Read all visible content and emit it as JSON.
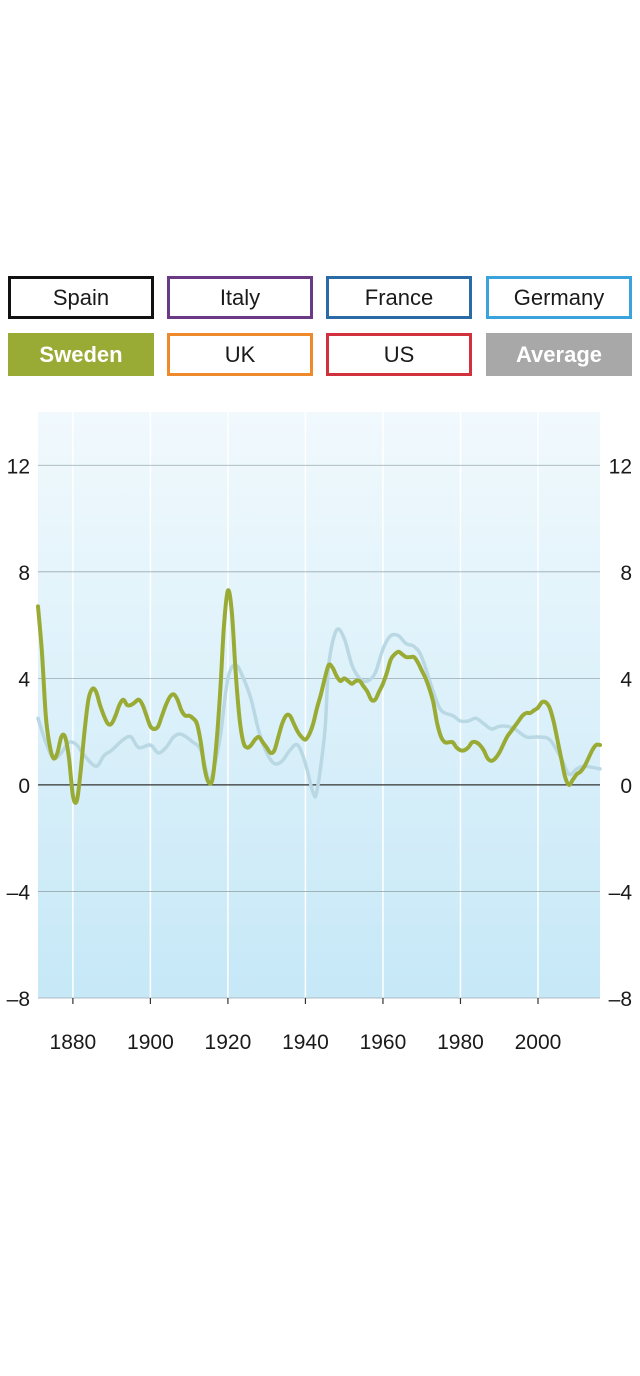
{
  "legend_buttons": [
    {
      "label": "Spain",
      "color": "#111111",
      "active": false
    },
    {
      "label": "Italy",
      "color": "#6b3a86",
      "active": false
    },
    {
      "label": "France",
      "color": "#2a6aa5",
      "active": false
    },
    {
      "label": "Germany",
      "color": "#3aa3db",
      "active": false
    },
    {
      "label": "Sweden",
      "color": "#9aab35",
      "active": true
    },
    {
      "label": "UK",
      "color": "#ee8a2b",
      "active": false
    },
    {
      "label": "US",
      "color": "#d0313c",
      "active": false
    },
    {
      "label": "Average",
      "color": "#a8a8a8",
      "active": true
    }
  ],
  "chart_data": {
    "type": "line",
    "xlim": [
      1871,
      2016
    ],
    "ylim": [
      -8,
      14
    ],
    "x_ticks": [
      "1880",
      "1900",
      "1920",
      "1940",
      "1960",
      "1980",
      "2000"
    ],
    "y_ticks": [
      "12",
      "8",
      "4",
      "0",
      "–4",
      "–8"
    ],
    "grid": true,
    "series": [
      {
        "name": "Average",
        "color": "#b9d8e3",
        "points": [
          [
            1871,
            2.5
          ],
          [
            1873,
            1.6
          ],
          [
            1875,
            1.0
          ],
          [
            1877,
            1.2
          ],
          [
            1879,
            1.6
          ],
          [
            1881,
            1.5
          ],
          [
            1883,
            1.1
          ],
          [
            1886,
            0.7
          ],
          [
            1888,
            1.1
          ],
          [
            1890,
            1.3
          ],
          [
            1893,
            1.7
          ],
          [
            1895,
            1.8
          ],
          [
            1897,
            1.4
          ],
          [
            1900,
            1.5
          ],
          [
            1902,
            1.2
          ],
          [
            1904,
            1.4
          ],
          [
            1906,
            1.8
          ],
          [
            1908,
            1.9
          ],
          [
            1911,
            1.6
          ],
          [
            1913,
            1.3
          ],
          [
            1915,
            0.2
          ],
          [
            1916,
            0.4
          ],
          [
            1918,
            1.8
          ],
          [
            1920,
            4.0
          ],
          [
            1922,
            4.5
          ],
          [
            1924,
            4.0
          ],
          [
            1926,
            3.2
          ],
          [
            1928,
            2.0
          ],
          [
            1930,
            1.2
          ],
          [
            1932,
            0.8
          ],
          [
            1934,
            0.9
          ],
          [
            1936,
            1.3
          ],
          [
            1938,
            1.5
          ],
          [
            1940,
            0.8
          ],
          [
            1942,
            -0.3
          ],
          [
            1943,
            -0.2
          ],
          [
            1945,
            2.0
          ],
          [
            1946,
            4.5
          ],
          [
            1948,
            5.8
          ],
          [
            1950,
            5.5
          ],
          [
            1952,
            4.5
          ],
          [
            1954,
            4.0
          ],
          [
            1956,
            3.9
          ],
          [
            1958,
            4.2
          ],
          [
            1960,
            5.1
          ],
          [
            1962,
            5.6
          ],
          [
            1964,
            5.6
          ],
          [
            1966,
            5.3
          ],
          [
            1968,
            5.2
          ],
          [
            1970,
            4.8
          ],
          [
            1973,
            3.5
          ],
          [
            1975,
            2.8
          ],
          [
            1978,
            2.6
          ],
          [
            1980,
            2.4
          ],
          [
            1982,
            2.4
          ],
          [
            1984,
            2.5
          ],
          [
            1986,
            2.3
          ],
          [
            1988,
            2.1
          ],
          [
            1990,
            2.2
          ],
          [
            1992,
            2.2
          ],
          [
            1994,
            2.1
          ],
          [
            1997,
            1.8
          ],
          [
            2000,
            1.8
          ],
          [
            2003,
            1.7
          ],
          [
            2006,
            1.0
          ],
          [
            2008,
            0.4
          ],
          [
            2010,
            0.6
          ],
          [
            2012,
            0.7
          ],
          [
            2016,
            0.6
          ]
        ]
      },
      {
        "name": "Sweden",
        "color": "#9aab35",
        "points": [
          [
            1871,
            6.7
          ],
          [
            1872,
            5.0
          ],
          [
            1873,
            2.6
          ],
          [
            1874,
            1.5
          ],
          [
            1875,
            1.0
          ],
          [
            1876,
            1.2
          ],
          [
            1877,
            1.8
          ],
          [
            1878,
            1.8
          ],
          [
            1879,
            1.0
          ],
          [
            1880,
            -0.4
          ],
          [
            1881,
            -0.6
          ],
          [
            1882,
            0.5
          ],
          [
            1883,
            2.0
          ],
          [
            1884,
            3.2
          ],
          [
            1885,
            3.6
          ],
          [
            1886,
            3.5
          ],
          [
            1887,
            3.0
          ],
          [
            1888,
            2.6
          ],
          [
            1889,
            2.3
          ],
          [
            1890,
            2.3
          ],
          [
            1891,
            2.6
          ],
          [
            1892,
            3.0
          ],
          [
            1893,
            3.2
          ],
          [
            1894,
            3.0
          ],
          [
            1895,
            3.0
          ],
          [
            1896,
            3.1
          ],
          [
            1897,
            3.2
          ],
          [
            1898,
            3.0
          ],
          [
            1899,
            2.6
          ],
          [
            1900,
            2.2
          ],
          [
            1901,
            2.1
          ],
          [
            1902,
            2.2
          ],
          [
            1903,
            2.6
          ],
          [
            1904,
            3.0
          ],
          [
            1905,
            3.3
          ],
          [
            1906,
            3.4
          ],
          [
            1907,
            3.2
          ],
          [
            1908,
            2.8
          ],
          [
            1909,
            2.6
          ],
          [
            1910,
            2.6
          ],
          [
            1911,
            2.5
          ],
          [
            1912,
            2.3
          ],
          [
            1913,
            1.6
          ],
          [
            1914,
            0.6
          ],
          [
            1915,
            0.1
          ],
          [
            1916,
            0.2
          ],
          [
            1917,
            1.5
          ],
          [
            1918,
            3.5
          ],
          [
            1919,
            6.0
          ],
          [
            1920,
            7.3
          ],
          [
            1921,
            6.5
          ],
          [
            1922,
            4.2
          ],
          [
            1923,
            2.5
          ],
          [
            1924,
            1.6
          ],
          [
            1925,
            1.4
          ],
          [
            1926,
            1.5
          ],
          [
            1927,
            1.7
          ],
          [
            1928,
            1.8
          ],
          [
            1929,
            1.6
          ],
          [
            1930,
            1.4
          ],
          [
            1931,
            1.2
          ],
          [
            1932,
            1.3
          ],
          [
            1933,
            1.8
          ],
          [
            1934,
            2.3
          ],
          [
            1935,
            2.6
          ],
          [
            1936,
            2.6
          ],
          [
            1937,
            2.3
          ],
          [
            1938,
            2.0
          ],
          [
            1939,
            1.8
          ],
          [
            1940,
            1.7
          ],
          [
            1941,
            1.9
          ],
          [
            1942,
            2.3
          ],
          [
            1943,
            2.9
          ],
          [
            1944,
            3.4
          ],
          [
            1945,
            4.0
          ],
          [
            1946,
            4.5
          ],
          [
            1947,
            4.4
          ],
          [
            1948,
            4.1
          ],
          [
            1949,
            3.9
          ],
          [
            1950,
            4.0
          ],
          [
            1951,
            3.9
          ],
          [
            1952,
            3.8
          ],
          [
            1953,
            3.9
          ],
          [
            1954,
            3.9
          ],
          [
            1955,
            3.7
          ],
          [
            1956,
            3.5
          ],
          [
            1957,
            3.2
          ],
          [
            1958,
            3.2
          ],
          [
            1959,
            3.5
          ],
          [
            1960,
            3.8
          ],
          [
            1961,
            4.2
          ],
          [
            1962,
            4.7
          ],
          [
            1963,
            4.9
          ],
          [
            1964,
            5.0
          ],
          [
            1965,
            4.9
          ],
          [
            1966,
            4.8
          ],
          [
            1967,
            4.8
          ],
          [
            1968,
            4.8
          ],
          [
            1969,
            4.6
          ],
          [
            1970,
            4.3
          ],
          [
            1971,
            4.0
          ],
          [
            1972,
            3.6
          ],
          [
            1973,
            3.1
          ],
          [
            1974,
            2.3
          ],
          [
            1975,
            1.8
          ],
          [
            1976,
            1.6
          ],
          [
            1977,
            1.6
          ],
          [
            1978,
            1.6
          ],
          [
            1979,
            1.4
          ],
          [
            1980,
            1.3
          ],
          [
            1981,
            1.3
          ],
          [
            1982,
            1.4
          ],
          [
            1983,
            1.6
          ],
          [
            1984,
            1.6
          ],
          [
            1985,
            1.5
          ],
          [
            1986,
            1.3
          ],
          [
            1987,
            1.0
          ],
          [
            1988,
            0.9
          ],
          [
            1989,
            1.0
          ],
          [
            1990,
            1.2
          ],
          [
            1991,
            1.5
          ],
          [
            1992,
            1.8
          ],
          [
            1993,
            2.0
          ],
          [
            1994,
            2.2
          ],
          [
            1995,
            2.4
          ],
          [
            1996,
            2.6
          ],
          [
            1997,
            2.7
          ],
          [
            1998,
            2.7
          ],
          [
            1999,
            2.8
          ],
          [
            2000,
            2.9
          ],
          [
            2001,
            3.1
          ],
          [
            2002,
            3.1
          ],
          [
            2003,
            2.9
          ],
          [
            2004,
            2.4
          ],
          [
            2005,
            1.7
          ],
          [
            2006,
            1.0
          ],
          [
            2007,
            0.3
          ],
          [
            2008,
            0.0
          ],
          [
            2009,
            0.2
          ],
          [
            2010,
            0.4
          ],
          [
            2011,
            0.5
          ],
          [
            2012,
            0.7
          ],
          [
            2013,
            1.0
          ],
          [
            2014,
            1.3
          ],
          [
            2015,
            1.5
          ],
          [
            2016,
            1.5
          ]
        ]
      }
    ]
  }
}
